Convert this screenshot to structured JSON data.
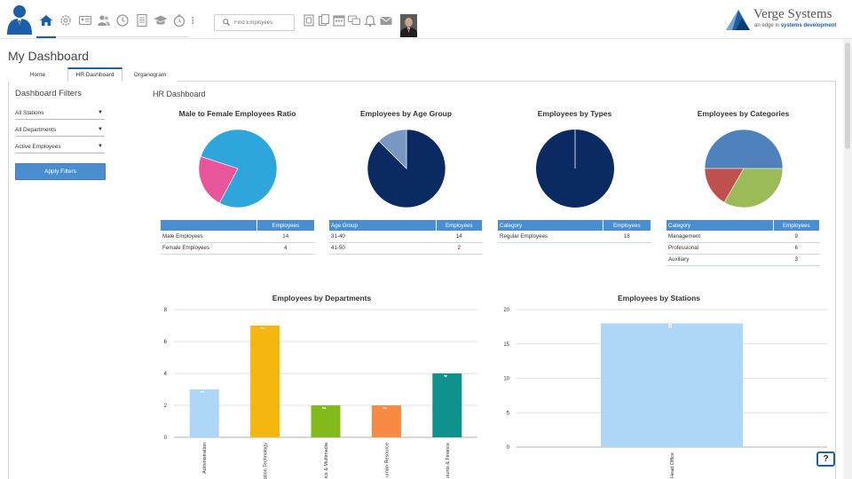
{
  "header": {
    "nav_icons": [
      "home-icon",
      "gear-icon",
      "id-card-icon",
      "users-icon",
      "clock-icon",
      "document-icon",
      "graduation-cap-icon",
      "stopwatch-icon",
      "info-icon"
    ],
    "search_placeholder": "Find Employees",
    "tool_icons": [
      "contacts-icon",
      "files-icon",
      "calendar-icon",
      "chat-icon",
      "bell-icon",
      "mail-icon"
    ],
    "brand": {
      "name": "Verge Systems",
      "tagline_pre": "an edge in ",
      "tagline_bold": "systems development"
    }
  },
  "page": {
    "title": "My Dashboard",
    "tabs": [
      {
        "label": "Home"
      },
      {
        "label": "HR Dashboard"
      },
      {
        "label": "Organogram"
      }
    ],
    "active_tab": "HR Dashboard"
  },
  "filters": {
    "title": "Dashboard Filters",
    "station": "All Stations",
    "department": "All Departments",
    "employee_status": "Active Employees",
    "apply_label": "Apply Filters"
  },
  "dashboard": {
    "title": "HR Dashboard",
    "pies": [
      {
        "title": "Male to Female Employees Ratio",
        "col1": "",
        "col2": "Employees",
        "rows": [
          {
            "label": "Male Employees",
            "value": 14
          },
          {
            "label": "Female Employees",
            "value": 4
          }
        ],
        "colors": [
          "#2ea6dc",
          "#e8559b"
        ]
      },
      {
        "title": "Employees by Age Group",
        "col1": "Age Group",
        "col2": "Employees",
        "rows": [
          {
            "label": "31-40",
            "value": 14
          },
          {
            "label": "41-50",
            "value": 2
          }
        ],
        "colors": [
          "#0c2a62",
          "#7a97c4"
        ]
      },
      {
        "title": "Employees by Types",
        "col1": "Category",
        "col2": "Employees",
        "rows": [
          {
            "label": "Regular Employees",
            "value": 18
          }
        ],
        "colors": [
          "#0c2a62"
        ]
      },
      {
        "title": "Employees by Categories",
        "col1": "Category",
        "col2": "Employees",
        "rows": [
          {
            "label": "Management",
            "value": 9
          },
          {
            "label": "Professional",
            "value": 6
          },
          {
            "label": "Auxiliary",
            "value": 3
          }
        ],
        "colors": [
          "#4f81bd",
          "#9bbb59",
          "#c0504d"
        ]
      }
    ]
  },
  "help_label": "?",
  "chart_data": [
    {
      "type": "pie",
      "title": "Male to Female Employees Ratio",
      "categories": [
        "Male Employees",
        "Female Employees"
      ],
      "values": [
        14,
        4
      ]
    },
    {
      "type": "pie",
      "title": "Employees by Age Group",
      "categories": [
        "31-40",
        "41-50"
      ],
      "values": [
        14,
        2
      ]
    },
    {
      "type": "pie",
      "title": "Employees by Types",
      "categories": [
        "Regular Employees"
      ],
      "values": [
        18
      ]
    },
    {
      "type": "pie",
      "title": "Employees by Categories",
      "categories": [
        "Management",
        "Professional",
        "Auxiliary"
      ],
      "values": [
        9,
        6,
        3
      ]
    },
    {
      "type": "bar",
      "title": "Employees by Departments",
      "categories": [
        "Administration",
        "ation Technology",
        "ics & Multimedia",
        "uman Resource",
        "ounts & Finance"
      ],
      "values": [
        3,
        7,
        2,
        2,
        4
      ],
      "colors": [
        "#aed6f7",
        "#f5b70f",
        "#84b91a",
        "#f98a44",
        "#0f928b"
      ],
      "yticks": [
        0,
        2,
        4,
        6,
        8
      ],
      "ylim": [
        0,
        8
      ],
      "grid": true
    },
    {
      "type": "bar",
      "title": "Employees by Stations",
      "categories": [
        "Head Office"
      ],
      "values": [
        18
      ],
      "colors": [
        "#aed6f7"
      ],
      "yticks": [
        0,
        5,
        10,
        15,
        20
      ],
      "ylim": [
        0,
        20
      ],
      "grid": true
    }
  ]
}
